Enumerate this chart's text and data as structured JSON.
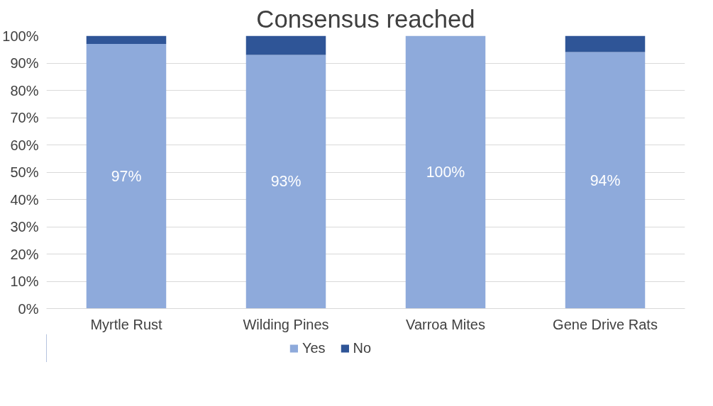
{
  "chart_data": {
    "type": "bar",
    "title": "Consensus reached",
    "stacked": true,
    "categories": [
      "Myrtle Rust",
      "Wilding Pines",
      "Varroa Mites",
      "Gene Drive Rats"
    ],
    "series": [
      {
        "name": "Yes",
        "color": "#8eaadb",
        "values": [
          97,
          93,
          100,
          94
        ],
        "value_labels": [
          "97%",
          "93%",
          "100%",
          "94%"
        ]
      },
      {
        "name": "No",
        "color": "#2f5597",
        "values": [
          3,
          7,
          0,
          6
        ]
      }
    ],
    "ylim": [
      0,
      100
    ],
    "yticks": [
      {
        "value": 0,
        "label": "0%"
      },
      {
        "value": 10,
        "label": "10%"
      },
      {
        "value": 20,
        "label": "20%"
      },
      {
        "value": 30,
        "label": "30%"
      },
      {
        "value": 40,
        "label": "40%"
      },
      {
        "value": 50,
        "label": "50%"
      },
      {
        "value": 60,
        "label": "60%"
      },
      {
        "value": 70,
        "label": "70%"
      },
      {
        "value": 80,
        "label": "80%"
      },
      {
        "value": 90,
        "label": "90%"
      },
      {
        "value": 100,
        "label": "100%"
      }
    ],
    "grid": "y",
    "legend": "bottom"
  }
}
